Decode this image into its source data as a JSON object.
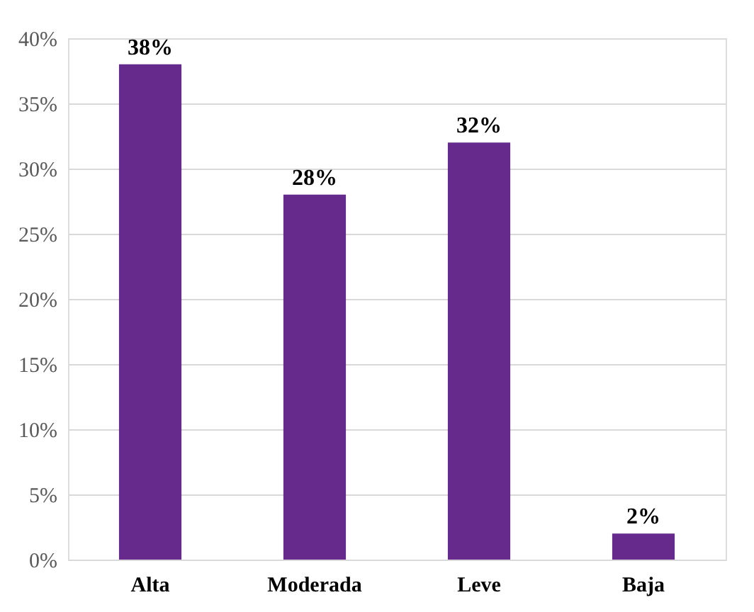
{
  "chart_data": {
    "type": "bar",
    "categories": [
      "Alta",
      "Moderada",
      "Leve",
      "Baja"
    ],
    "values": [
      38,
      28,
      32,
      2
    ],
    "value_labels": [
      "38%",
      "28%",
      "32%",
      "2%"
    ],
    "color": "#652a8c",
    "ylim": [
      0,
      40
    ],
    "yticks": [
      {
        "value": 0,
        "label": "0%"
      },
      {
        "value": 5,
        "label": "5%"
      },
      {
        "value": 10,
        "label": "10%"
      },
      {
        "value": 15,
        "label": "15%"
      },
      {
        "value": 20,
        "label": "20%"
      },
      {
        "value": 25,
        "label": "25%"
      },
      {
        "value": 30,
        "label": "30%"
      },
      {
        "value": 35,
        "label": "35%"
      },
      {
        "value": 40,
        "label": "40%"
      }
    ],
    "grid": "y"
  }
}
